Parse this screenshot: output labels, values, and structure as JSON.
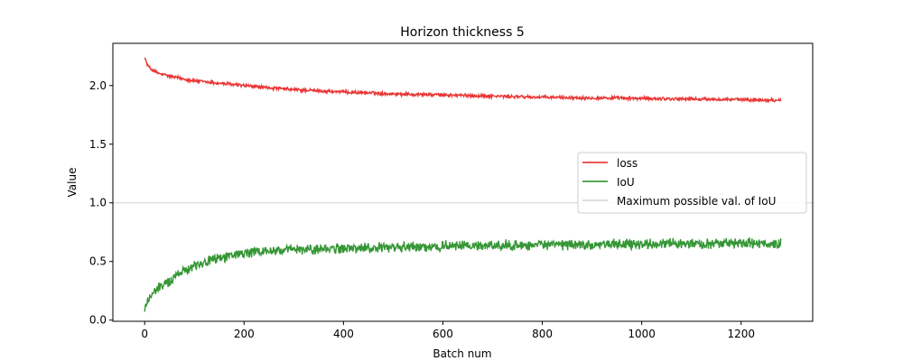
{
  "chart_data": {
    "type": "line",
    "title": "Horizon thickness 5",
    "xlabel": "Batch num",
    "ylabel": "Value",
    "xlim": [
      -64,
      1344
    ],
    "ylim": [
      -0.01,
      2.36
    ],
    "x_ticks": [
      0,
      200,
      400,
      600,
      800,
      1000,
      1200
    ],
    "x_tick_labels": [
      "0",
      "200",
      "400",
      "600",
      "800",
      "1000",
      "1200"
    ],
    "y_ticks": [
      0.0,
      0.5,
      1.0,
      1.5,
      2.0
    ],
    "y_tick_labels": [
      "0.0",
      "0.5",
      "1.0",
      "1.5",
      "2.0"
    ],
    "grid": false,
    "legend_position": "center-right",
    "series": [
      {
        "name": "loss",
        "color": "#e8201f",
        "x": [
          0,
          5,
          10,
          20,
          30,
          50,
          75,
          100,
          150,
          200,
          250,
          300,
          400,
          500,
          600,
          700,
          800,
          900,
          1000,
          1100,
          1200,
          1280
        ],
        "values": [
          2.24,
          2.18,
          2.15,
          2.12,
          2.1,
          2.08,
          2.06,
          2.04,
          2.02,
          2.0,
          1.98,
          1.965,
          1.945,
          1.93,
          1.92,
          1.91,
          1.9,
          1.895,
          1.89,
          1.885,
          1.88,
          1.875
        ]
      },
      {
        "name": "IoU",
        "color": "#1f8b1f",
        "x": [
          0,
          5,
          10,
          20,
          30,
          50,
          75,
          100,
          150,
          200,
          250,
          300,
          400,
          500,
          600,
          700,
          800,
          900,
          1000,
          1100,
          1200,
          1280
        ],
        "values": [
          0.08,
          0.16,
          0.2,
          0.24,
          0.28,
          0.33,
          0.42,
          0.47,
          0.53,
          0.57,
          0.59,
          0.6,
          0.61,
          0.62,
          0.63,
          0.635,
          0.64,
          0.645,
          0.65,
          0.65,
          0.655,
          0.65
        ]
      },
      {
        "name": "Maximum possible val. of IoU",
        "color": "#d3d3d3",
        "constant": 1.0
      }
    ]
  }
}
